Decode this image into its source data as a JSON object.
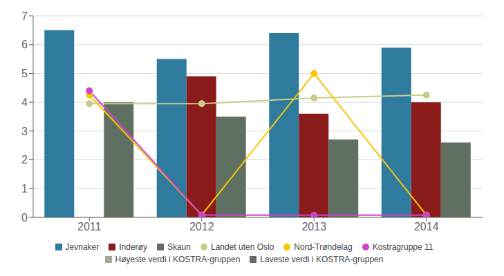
{
  "chart_data": {
    "type": "bar",
    "categories": [
      2011,
      2012,
      2013,
      2014
    ],
    "series": [
      {
        "name": "Jevnaker",
        "type": "bar",
        "color": "#2E7B9E",
        "values": [
          6.5,
          5.5,
          6.4,
          5.9
        ]
      },
      {
        "name": "Inderøy",
        "type": "bar",
        "color": "#8B1A1A",
        "values": [
          null,
          4.9,
          3.6,
          4.0
        ]
      },
      {
        "name": "Skaun",
        "type": "bar",
        "color": "#5F7062",
        "values": [
          4.0,
          3.5,
          2.7,
          2.6
        ]
      },
      {
        "name": "Landet uten Oslo",
        "type": "line",
        "color": "#C8CC88",
        "marker": "circle",
        "values": [
          3.95,
          3.95,
          4.15,
          4.25
        ]
      },
      {
        "name": "Nord-Trøndelag",
        "type": "line",
        "color": "#F5C800",
        "marker": "circle",
        "values": [
          4.25,
          0.08,
          5.0,
          0.08
        ]
      },
      {
        "name": "Kostragruppe 11",
        "type": "line",
        "color": "#CC44CC",
        "marker": "circle",
        "values": [
          4.4,
          0.08,
          0.08,
          0.08
        ]
      },
      {
        "name": "Høyeste verdi i KOSTRA-gruppen",
        "type": "patch",
        "color": "#A8A89A",
        "values": [
          null,
          null,
          null,
          null
        ]
      },
      {
        "name": "Laveste verdi i KOSTRA-gruppen",
        "type": "patch",
        "color": "#666B62",
        "values": [
          null,
          null,
          null,
          null
        ]
      }
    ],
    "ylim": [
      0,
      7
    ],
    "yticks": [
      0,
      1,
      2,
      3,
      4,
      5,
      6,
      7
    ],
    "grid": true,
    "legend": "bottom"
  }
}
